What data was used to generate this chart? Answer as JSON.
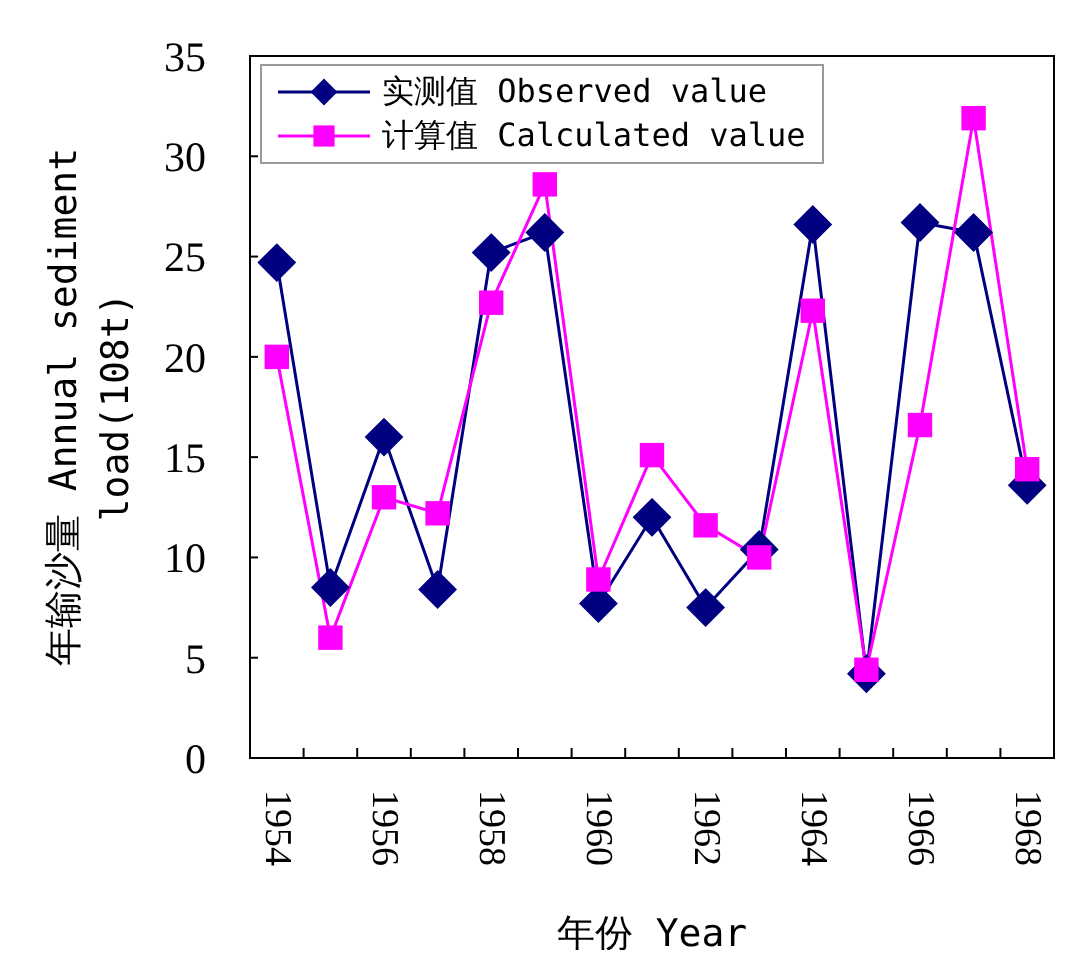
{
  "chart_data": {
    "type": "line",
    "xlabel": "年份 Year",
    "ylabel": "年输沙量 Annual sediment\nload(108t)",
    "categories": [
      "1954",
      null,
      "1956",
      null,
      "1958",
      null,
      "1960",
      null,
      "1962",
      null,
      "1964",
      null,
      "1966",
      null,
      "1968"
    ],
    "series": [
      {
        "name": "实测值 Observed value",
        "color": "#000080",
        "marker": "diamond",
        "values": [
          24.7,
          8.5,
          16.0,
          8.4,
          25.2,
          26.2,
          7.7,
          12.0,
          7.5,
          10.4,
          26.6,
          4.2,
          26.7,
          26.2,
          13.6
        ]
      },
      {
        "name": "计算值 Calculated value",
        "color": "#ff00ff",
        "marker": "square",
        "values": [
          20.0,
          6.0,
          13.0,
          12.2,
          22.7,
          28.6,
          8.9,
          15.1,
          11.6,
          10.0,
          22.3,
          4.4,
          16.6,
          31.9,
          14.4
        ]
      }
    ],
    "ylim": [
      0,
      35
    ],
    "yticks": [
      0,
      5,
      10,
      15,
      20,
      25,
      30,
      35
    ],
    "grid": false,
    "legend": "top left",
    "line_style": "solid"
  }
}
